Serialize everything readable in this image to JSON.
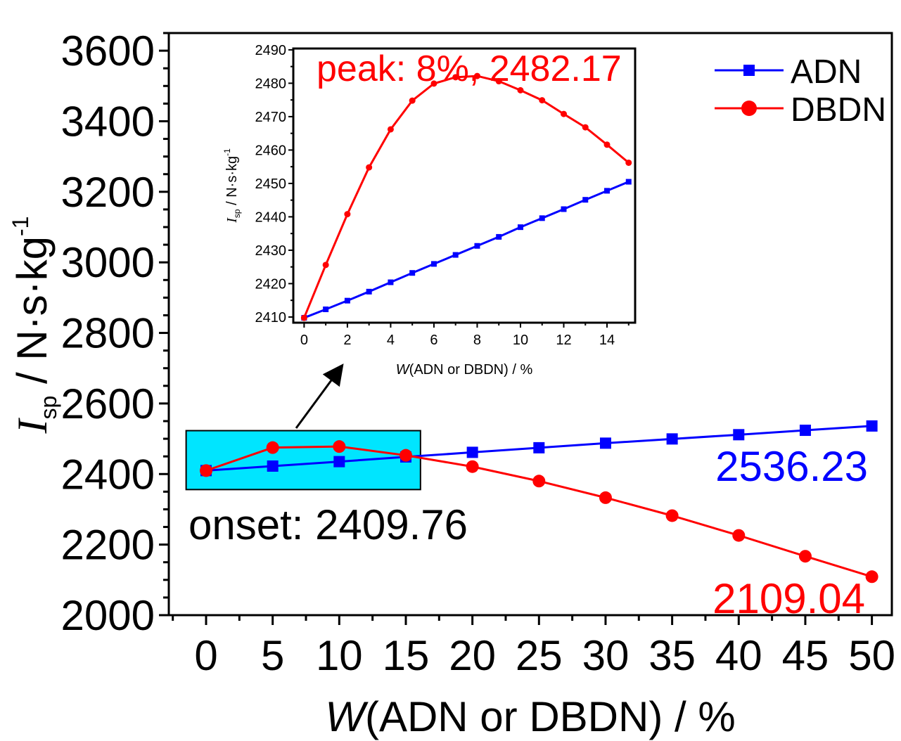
{
  "chart_data": [
    {
      "type": "line",
      "x": [
        0,
        5,
        10,
        15,
        20,
        25,
        30,
        35,
        40,
        45,
        50
      ],
      "xlabel_var": "W",
      "xlabel_rest": "(ADN or DBDN) / %",
      "ylabel_var": "I",
      "ylabel_sub": "sp",
      "ylabel_rest": " / N·s·kg",
      "ylabel_sup": "-1",
      "xlim": [
        -2.8,
        51.5
      ],
      "ylim": [
        2000,
        3650
      ],
      "xticks": [
        0,
        5,
        10,
        15,
        20,
        25,
        30,
        35,
        40,
        45,
        50
      ],
      "yticks": [
        2000,
        2200,
        2400,
        2600,
        2800,
        3000,
        3200,
        3400,
        3600
      ],
      "legend_position": "top-right",
      "series": [
        {
          "name": "ADN",
          "color": "#0000ff",
          "marker": "square",
          "values": [
            2409.76,
            2422.5,
            2435.2,
            2448.5,
            2461.5,
            2474.5,
            2487.5,
            2499.5,
            2511.5,
            2524,
            2536.23
          ]
        },
        {
          "name": "DBDN",
          "color": "#ff0000",
          "marker": "circle",
          "values": [
            2409.76,
            2475,
            2478,
            2453,
            2421,
            2380,
            2333,
            2282,
            2226,
            2167,
            2109.04
          ]
        }
      ],
      "annotations": {
        "onset": "onset: 2409.76",
        "adn_end": "2536.23",
        "dbdn_end": "2109.04"
      },
      "highlight_box": {
        "x_range": [
          -1.5,
          16.1
        ],
        "y_range": [
          2356,
          2523
        ],
        "color": "#00e5ff"
      }
    },
    {
      "type": "line",
      "inset": true,
      "x": [
        0,
        1,
        2,
        3,
        4,
        5,
        6,
        7,
        8,
        9,
        10,
        11,
        12,
        13,
        14,
        15
      ],
      "xlabel_var": "W",
      "xlabel_rest": "(ADN or DBDN) / %",
      "ylabel_var": "I",
      "ylabel_sub": "sp",
      "ylabel_rest": " / N·s·kg",
      "ylabel_sup": "-1",
      "xlim": [
        -0.5,
        15.3
      ],
      "ylim": [
        2408.3,
        2490.4
      ],
      "xticks": [
        0,
        2,
        4,
        6,
        8,
        10,
        12,
        14
      ],
      "yticks": [
        2410,
        2420,
        2430,
        2440,
        2450,
        2460,
        2470,
        2480,
        2490
      ],
      "series": [
        {
          "name": "ADN",
          "color": "#0000ff",
          "marker": "square",
          "values": [
            2409.76,
            2412.3,
            2414.9,
            2417.6,
            2420.4,
            2423.2,
            2425.9,
            2428.6,
            2431.3,
            2434.0,
            2436.9,
            2439.6,
            2442.3,
            2445.1,
            2447.8,
            2450.5
          ]
        },
        {
          "name": "DBDN",
          "color": "#ff0000",
          "marker": "circle",
          "values": [
            2409.76,
            2425.6,
            2440.8,
            2454.8,
            2466.2,
            2474.8,
            2479.9,
            2481.8,
            2482.17,
            2480.6,
            2477.9,
            2474.9,
            2470.8,
            2466.8,
            2461.6,
            2456.2
          ]
        }
      ],
      "annotations": {
        "peak": "peak: 8%, 2482.17"
      }
    }
  ]
}
